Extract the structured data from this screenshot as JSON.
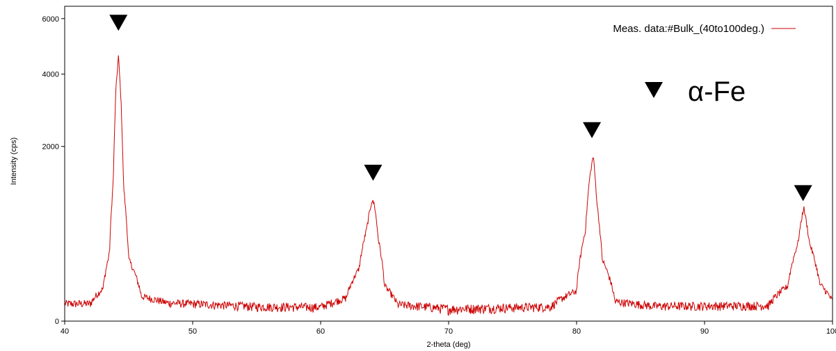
{
  "chart_data": {
    "type": "line",
    "title": "",
    "xlabel": "2-theta (deg)",
    "ylabel": "Intensity (cps)",
    "xlim": [
      40,
      100
    ],
    "ylim": [
      0,
      6500
    ],
    "y_scale": "sqrt",
    "x_ticks": [
      40,
      50,
      60,
      70,
      80,
      90,
      100
    ],
    "x_tick_labels": [
      "40",
      "50",
      "60",
      "70",
      "80",
      "90",
      "100"
    ],
    "y_ticks": [
      0,
      2000,
      4000,
      6000
    ],
    "y_tick_labels": [
      "0",
      "2000",
      "4000",
      "6000"
    ],
    "grid": false,
    "legend": {
      "position": "top-right",
      "entries": [
        {
          "label": "Meas. data:#Bulk_(40to100deg.)",
          "color": "#cc0000"
        }
      ]
    },
    "series": [
      {
        "name": "Meas. data:#Bulk_(40to100deg.)",
        "color": "#cc0000",
        "x": [
          40,
          42,
          43,
          43.5,
          43.8,
          44.0,
          44.2,
          44.4,
          44.6,
          45,
          46,
          48,
          55,
          60,
          62,
          63,
          63.6,
          64.0,
          64.2,
          64.5,
          65,
          66,
          70,
          78,
          80,
          80.7,
          81.0,
          81.3,
          81.6,
          82,
          83,
          86,
          95,
          96.5,
          97.3,
          97.75,
          98.2,
          99,
          100
        ],
        "y": [
          20,
          20,
          70,
          300,
          1300,
          3500,
          4600,
          3200,
          1200,
          250,
          40,
          22,
          14,
          13,
          35,
          180,
          560,
          950,
          900,
          450,
          80,
          18,
          10,
          14,
          60,
          550,
          1300,
          1800,
          900,
          250,
          25,
          15,
          16,
          80,
          400,
          850,
          400,
          90,
          25
        ]
      }
    ],
    "markers": [
      {
        "shape": "down-triangle",
        "x": 44.2,
        "y": 5850
      },
      {
        "shape": "down-triangle",
        "x": 64.1,
        "y": 1450
      },
      {
        "shape": "down-triangle",
        "x": 81.2,
        "y": 2400
      },
      {
        "shape": "down-triangle",
        "x": 97.7,
        "y": 1080
      }
    ],
    "annotation": {
      "text": "α-Fe",
      "marker": "down-triangle",
      "position": "top-right"
    }
  }
}
